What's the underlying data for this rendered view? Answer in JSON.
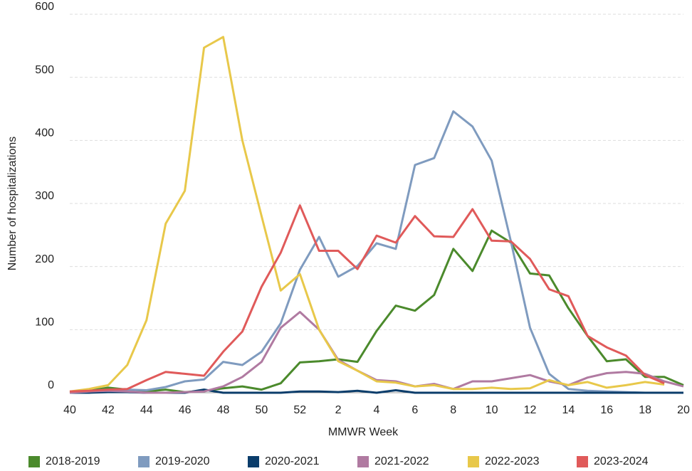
{
  "chart_data": {
    "type": "line",
    "xlabel": "MMWR Week",
    "ylabel": "Number of hospitalizations",
    "categories": [
      "40",
      null,
      "42",
      null,
      "44",
      null,
      "46",
      null,
      "48",
      null,
      "50",
      null,
      "52",
      null,
      "2",
      null,
      "4",
      null,
      "6",
      null,
      "8",
      null,
      "10",
      null,
      "12",
      null,
      "14",
      null,
      "16",
      null,
      "18",
      null,
      "20"
    ],
    "ylim": [
      0,
      600
    ],
    "yticks": [
      0,
      100,
      200,
      300,
      400,
      500,
      600
    ],
    "grid": true,
    "series": [
      {
        "name": "2018-2019",
        "color": "#4b8a2c",
        "values": [
          0,
          3,
          8,
          5,
          2,
          5,
          1,
          3,
          7,
          10,
          5,
          15,
          48,
          50,
          53,
          49,
          98,
          138,
          130,
          155,
          228,
          193,
          257,
          238,
          189,
          186,
          134,
          90,
          50,
          53,
          25,
          25,
          12
        ]
      },
      {
        "name": "2019-2020",
        "color": "#7f9bbf",
        "values": [
          0,
          2,
          4,
          5,
          4,
          9,
          18,
          21,
          49,
          44,
          65,
          110,
          195,
          247,
          184,
          201,
          237,
          228,
          361,
          372,
          446,
          422,
          368,
          240,
          103,
          30,
          6,
          3,
          2,
          1,
          0,
          0,
          0
        ]
      },
      {
        "name": "2020-2021",
        "color": "#0b3d6b",
        "values": [
          0,
          0,
          1,
          1,
          0,
          0,
          0,
          5,
          0,
          0,
          0,
          0,
          2,
          2,
          1,
          3,
          0,
          4,
          0,
          0,
          0,
          0,
          0,
          0,
          0,
          0,
          0,
          0,
          0,
          0,
          0,
          0,
          0
        ]
      },
      {
        "name": "2021-2022",
        "color": "#b07aa1",
        "values": [
          0,
          2,
          3,
          2,
          0,
          0,
          1,
          2,
          10,
          25,
          49,
          103,
          128,
          100,
          52,
          35,
          20,
          18,
          10,
          14,
          6,
          18,
          18,
          23,
          28,
          18,
          12,
          24,
          31,
          33,
          30,
          18,
          10
        ]
      },
      {
        "name": "2022-2023",
        "color": "#e8c84a",
        "values": [
          2,
          6,
          12,
          44,
          115,
          268,
          320,
          547,
          564,
          400,
          280,
          162,
          188,
          100,
          50,
          35,
          18,
          16,
          10,
          12,
          6,
          6,
          8,
          6,
          7,
          20,
          12,
          17,
          8,
          12,
          17,
          13,
          null
        ]
      },
      {
        "name": "2023-2024",
        "color": "#e05a5a",
        "values": [
          2,
          3,
          5,
          6,
          20,
          33,
          30,
          27,
          65,
          97,
          168,
          222,
          297,
          225,
          225,
          196,
          249,
          238,
          280,
          248,
          247,
          291,
          241,
          240,
          212,
          164,
          153,
          90,
          72,
          59,
          28,
          15,
          null
        ]
      }
    ]
  }
}
